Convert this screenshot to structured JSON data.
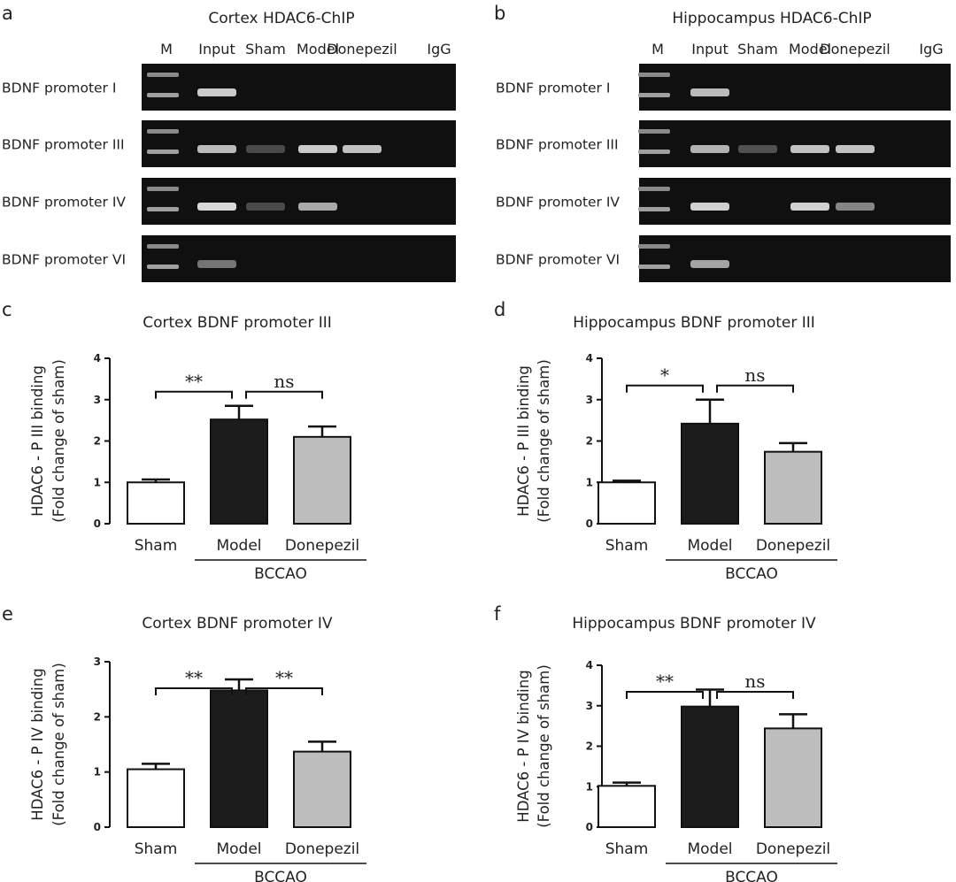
{
  "gels": [
    {
      "panel": "a",
      "title": "Cortex HDAC6-ChIP",
      "lanes": [
        "M",
        "Input",
        "Sham",
        "Model",
        "Donepezil",
        "IgG"
      ],
      "rows": [
        "BDNF promoter I",
        "BDNF promoter III",
        "BDNF promoter IV",
        "BDNF promoter VI"
      ]
    },
    {
      "panel": "b",
      "title": "Hippocampus HDAC6-ChIP",
      "lanes": [
        "M",
        "Input",
        "Sham",
        "Model",
        "Donepezil",
        "IgG"
      ],
      "rows": [
        "BDNF promoter I",
        "BDNF promoter III",
        "BDNF promoter IV",
        "BDNF promoter VI"
      ]
    }
  ],
  "colors": {
    "sham": "#ffffff",
    "model": "#1c1c1c",
    "donepezil": "#bdbdbd",
    "gel": "#101010",
    "band": "#d8d8d8"
  },
  "chart_data": [
    {
      "panel": "c",
      "type": "bar",
      "title": "Cortex BDNF promoter III",
      "ylabel": [
        "HDAC6 - P III binding",
        "(Fold change of sham)"
      ],
      "categories": [
        "Sham",
        "Model",
        "Donepezil"
      ],
      "group_label": "BCCAO",
      "values": [
        1.0,
        2.52,
        2.1
      ],
      "errors": [
        0.07,
        0.33,
        0.25
      ],
      "ylim": [
        0,
        4
      ],
      "yticks": [
        "0",
        "1",
        "2",
        "3",
        "4"
      ],
      "comparisons": [
        {
          "from": 0,
          "to": 1,
          "label": "**"
        },
        {
          "from": 1,
          "to": 2,
          "label": "ns"
        }
      ]
    },
    {
      "panel": "d",
      "type": "bar",
      "title": "Hippocampus BDNF promoter III",
      "ylabel": [
        "HDAC6 - P III binding",
        "(Fold change of sham)"
      ],
      "categories": [
        "Sham",
        "Model",
        "Donepezil"
      ],
      "group_label": "BCCAO",
      "values": [
        1.0,
        2.42,
        1.74
      ],
      "errors": [
        0.04,
        0.58,
        0.21
      ],
      "ylim": [
        0,
        4
      ],
      "yticks": [
        "0",
        "1",
        "2",
        "3",
        "4"
      ],
      "comparisons": [
        {
          "from": 0,
          "to": 1,
          "label": "*"
        },
        {
          "from": 1,
          "to": 2,
          "label": "ns"
        }
      ]
    },
    {
      "panel": "e",
      "type": "bar",
      "title": "Cortex BDNF promoter IV",
      "ylabel": [
        "HDAC6 - P IV binding",
        "(Fold change of sham)"
      ],
      "categories": [
        "Sham",
        "Model",
        "Donepezil"
      ],
      "group_label": "BCCAO",
      "values": [
        1.05,
        2.48,
        1.37
      ],
      "errors": [
        0.1,
        0.2,
        0.18
      ],
      "ylim": [
        0,
        3
      ],
      "yticks": [
        "0",
        "1",
        "2",
        "3"
      ],
      "comparisons": [
        {
          "from": 0,
          "to": 1,
          "label": "**"
        },
        {
          "from": 1,
          "to": 2,
          "label": "**"
        }
      ]
    },
    {
      "panel": "f",
      "type": "bar",
      "title": "Hippocampus BDNF promoter IV",
      "ylabel": [
        "HDAC6 - P IV binding",
        "(Fold change of sham)"
      ],
      "categories": [
        "Sham",
        "Model",
        "Donepezil"
      ],
      "group_label": "BCCAO",
      "values": [
        1.02,
        2.98,
        2.44
      ],
      "errors": [
        0.08,
        0.42,
        0.35
      ],
      "ylim": [
        0,
        4
      ],
      "yticks": [
        "0",
        "1",
        "2",
        "3",
        "4"
      ],
      "comparisons": [
        {
          "from": 0,
          "to": 1,
          "label": "**"
        },
        {
          "from": 1,
          "to": 2,
          "label": "ns"
        }
      ]
    }
  ]
}
